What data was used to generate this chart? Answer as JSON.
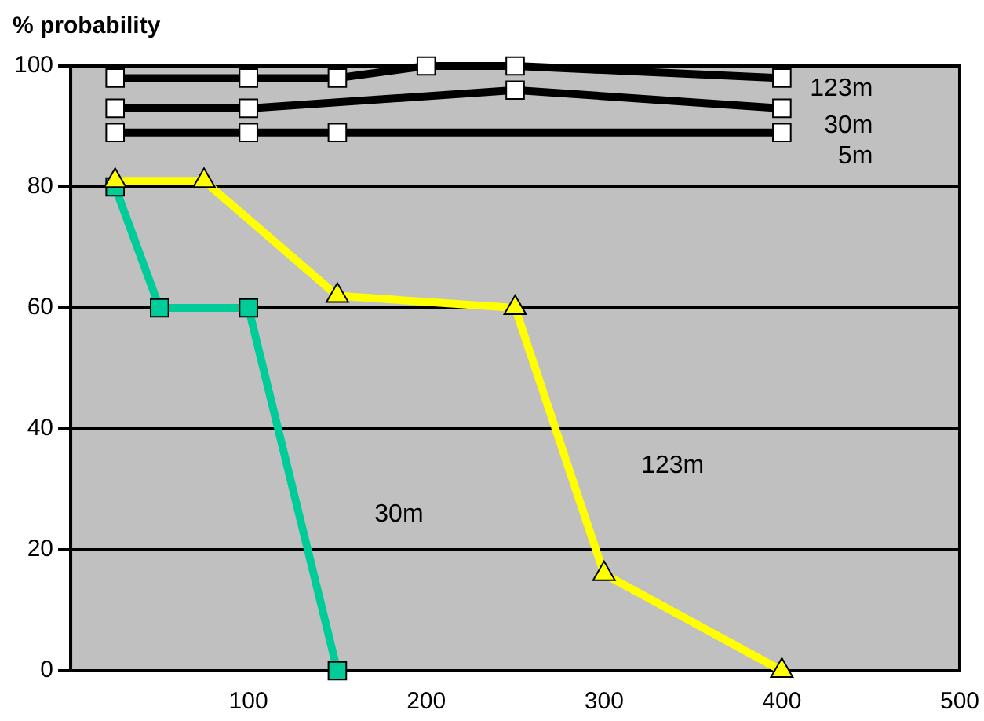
{
  "chart_data": {
    "type": "line",
    "ylabel": "% probability",
    "xlim": [
      0,
      500
    ],
    "xticks": [
      100,
      200,
      300,
      400,
      500
    ],
    "ylim": [
      0,
      100
    ],
    "yticks": [
      0,
      20,
      40,
      60,
      80,
      100
    ],
    "grid": "y",
    "legend": false,
    "series": [
      {
        "name": "123m",
        "color": "#000000",
        "marker": "square",
        "x": [
          25,
          100,
          150,
          200,
          250,
          400
        ],
        "values": [
          98,
          98,
          98,
          100,
          100,
          98
        ]
      },
      {
        "name": "30m",
        "color": "#000000",
        "marker": "square",
        "x": [
          25,
          100,
          250,
          400
        ],
        "values": [
          93,
          93,
          96,
          93
        ]
      },
      {
        "name": "5m",
        "color": "#000000",
        "marker": "square",
        "x": [
          25,
          100,
          150,
          400
        ],
        "values": [
          89,
          89,
          89,
          89
        ]
      },
      {
        "name": "30m",
        "color": "#00cc99",
        "marker": "square",
        "x": [
          25,
          50,
          100,
          150
        ],
        "values": [
          80,
          60,
          60,
          0
        ]
      },
      {
        "name": "123m",
        "color": "#ffff00",
        "marker": "triangle",
        "x": [
          25,
          75,
          150,
          250,
          300,
          400
        ],
        "values": [
          81,
          81,
          62,
          60,
          16,
          0
        ]
      }
    ]
  }
}
